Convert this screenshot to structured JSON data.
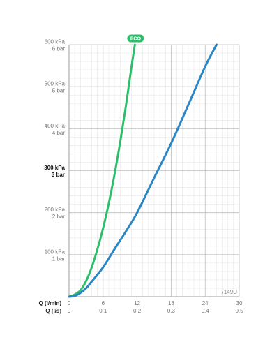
{
  "chart_data": {
    "type": "line",
    "title": "",
    "code": "7149U",
    "x_primary": {
      "label": "Q (l/min)",
      "ticks": [
        "0",
        "6",
        "12",
        "18",
        "24",
        "30"
      ],
      "range": [
        0,
        30
      ]
    },
    "x_secondary": {
      "label": "Q (l/s)",
      "ticks": [
        "0",
        "0.1",
        "0.2",
        "0.3",
        "0.4",
        "0.5"
      ],
      "range": [
        0,
        0.5
      ]
    },
    "y": {
      "range": [
        0,
        600
      ],
      "units_primary": "kPa",
      "ticks_kpa": [
        "100 kPa",
        "200 kPa",
        "300 kPa",
        "400 kPa",
        "500 kPa",
        "600 kPa"
      ],
      "ticks_bar": [
        "1 bar",
        "2 bar",
        "3 bar",
        "4 bar",
        "5 bar",
        "6 bar"
      ],
      "tick_values": [
        100,
        200,
        300,
        400,
        500,
        600
      ],
      "highlight_value": 300
    },
    "grid": true,
    "series": [
      {
        "name": "ECO",
        "color": "#2dbe6c",
        "points": [
          [
            0,
            0
          ],
          [
            1,
            5
          ],
          [
            2,
            15
          ],
          [
            3,
            37
          ],
          [
            4,
            70
          ],
          [
            5,
            113
          ],
          [
            6,
            163
          ],
          [
            7,
            222
          ],
          [
            8,
            290
          ],
          [
            9,
            367
          ],
          [
            10,
            452
          ],
          [
            11,
            547
          ],
          [
            11.6,
            600
          ]
        ]
      },
      {
        "name": "",
        "color": "#2a86c5",
        "points": [
          [
            0,
            0
          ],
          [
            1,
            2
          ],
          [
            2,
            9
          ],
          [
            3,
            20
          ],
          [
            4,
            36
          ],
          [
            6,
            70
          ],
          [
            8,
            113
          ],
          [
            10,
            155
          ],
          [
            12,
            200
          ],
          [
            15,
            283
          ],
          [
            18,
            365
          ],
          [
            21,
            456
          ],
          [
            24,
            548
          ],
          [
            26,
            600
          ]
        ]
      }
    ]
  },
  "colors": {
    "grid_major": "#bdbdbd",
    "grid_minor": "#e6e6e6",
    "eco_badge": "#2dbe6c"
  }
}
